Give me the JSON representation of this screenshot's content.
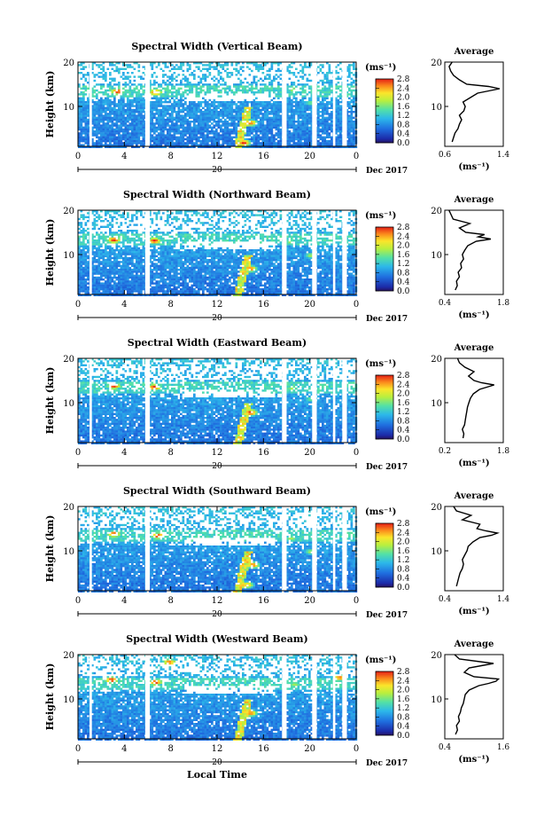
{
  "figure": {
    "xlabel_bottom": "Local Time",
    "date_label": "Dec 2017",
    "day_label": "20",
    "colorbar_unit_label": "(ms⁻¹)",
    "colorbar_ticks": [
      "0.0",
      "0.4",
      "0.8",
      "1.2",
      "1.6",
      "2.0",
      "2.4",
      "2.8"
    ],
    "profile_title": "Average",
    "profile_xlabel": "(ms⁻¹)",
    "height_label": "Height (km)"
  },
  "chart_data": [
    {
      "type": "heatmap",
      "title": "Spectral Width (Vertical Beam)",
      "xlabel": "Local Time",
      "ylabel": "Height (km)",
      "x_ticks": [
        "0",
        "4",
        "8",
        "12",
        "16",
        "20",
        "0"
      ],
      "xlim": [
        0,
        24
      ],
      "y_ticks": [
        "10",
        "20"
      ],
      "ylim": [
        1,
        20
      ],
      "gaps_hours": [
        [
          1.0,
          1.2
        ],
        [
          5.8,
          6.2
        ],
        [
          17.6,
          18.0
        ],
        [
          20.2,
          20.6
        ],
        [
          22.0,
          22.2
        ],
        [
          22.8,
          23.2
        ]
      ],
      "hotspots": [
        {
          "t": 3.3,
          "h": 13.6,
          "v": 2.8
        },
        {
          "t": 6.6,
          "h": 13.4,
          "v": 2.8
        },
        {
          "t": 14.8,
          "h": 6.5,
          "v": 2.6
        },
        {
          "t": 14.2,
          "h": 2.0,
          "v": 2.8
        },
        {
          "t": 18.5,
          "h": 14.0,
          "v": 1.8
        },
        {
          "t": 20.0,
          "h": 11.0,
          "v": 1.6
        }
      ],
      "colorbar": {
        "min": 0.0,
        "max": 2.8,
        "ticks": [
          0.0,
          0.4,
          0.8,
          1.2,
          1.6,
          2.0,
          2.4,
          2.8
        ]
      },
      "profile": {
        "title": "Average",
        "xlabel": "(ms⁻¹)",
        "x_ticks": [
          "0.6",
          "1.4"
        ],
        "xlim": [
          0.6,
          1.4
        ],
        "height": [
          2,
          3,
          4,
          5,
          6,
          7,
          8,
          9,
          10,
          11,
          12,
          13,
          13.5,
          14,
          14.5,
          15,
          16,
          17,
          18,
          19,
          20
        ],
        "values": [
          0.7,
          0.72,
          0.74,
          0.78,
          0.8,
          0.83,
          0.8,
          0.86,
          0.88,
          0.85,
          0.95,
          1.05,
          1.2,
          1.35,
          1.2,
          0.9,
          0.8,
          0.72,
          0.68,
          0.66,
          0.7
        ]
      }
    },
    {
      "type": "heatmap",
      "title": "Spectral Width (Northward Beam)",
      "xlabel": "Local Time",
      "ylabel": "Height (km)",
      "x_ticks": [
        "0",
        "4",
        "8",
        "12",
        "16",
        "20",
        "0"
      ],
      "xlim": [
        0,
        24
      ],
      "y_ticks": [
        "10",
        "20"
      ],
      "ylim": [
        1,
        20
      ],
      "gaps_hours": [
        [
          1.0,
          1.2
        ],
        [
          5.8,
          6.2
        ],
        [
          17.6,
          18.0
        ],
        [
          20.2,
          20.6
        ],
        [
          22.0,
          22.2
        ],
        [
          22.8,
          23.2
        ]
      ],
      "hotspots": [
        {
          "t": 3.0,
          "h": 13.5,
          "v": 2.8
        },
        {
          "t": 6.5,
          "h": 13.3,
          "v": 2.8
        },
        {
          "t": 14.8,
          "h": 7.0,
          "v": 2.6
        },
        {
          "t": 18.3,
          "h": 13.0,
          "v": 1.8
        },
        {
          "t": 20.0,
          "h": 10.0,
          "v": 1.8
        }
      ],
      "colorbar": {
        "min": 0.0,
        "max": 2.8,
        "ticks": [
          0.0,
          0.4,
          0.8,
          1.2,
          1.6,
          2.0,
          2.4,
          2.8
        ]
      },
      "profile": {
        "title": "Average",
        "xlabel": "(ms⁻¹)",
        "x_ticks": [
          "0.4",
          "1.8"
        ],
        "xlim": [
          0.4,
          1.8
        ],
        "height": [
          2,
          3,
          4,
          5,
          6,
          7,
          8,
          9,
          10,
          11,
          12,
          13,
          13.5,
          14,
          14.5,
          15,
          16,
          17,
          18,
          19,
          20
        ],
        "values": [
          0.65,
          0.7,
          0.68,
          0.75,
          0.72,
          0.8,
          0.78,
          0.85,
          0.82,
          0.88,
          0.95,
          1.15,
          1.5,
          1.2,
          1.35,
          0.9,
          0.75,
          1.0,
          0.6,
          0.55,
          0.5
        ]
      }
    },
    {
      "type": "heatmap",
      "title": "Spectral Width (Eastward Beam)",
      "xlabel": "Local Time",
      "ylabel": "Height (km)",
      "x_ticks": [
        "0",
        "4",
        "8",
        "12",
        "16",
        "20",
        "0"
      ],
      "xlim": [
        0,
        24
      ],
      "y_ticks": [
        "10",
        "20"
      ],
      "ylim": [
        1,
        20
      ],
      "gaps_hours": [
        [
          1.0,
          1.2
        ],
        [
          5.8,
          6.2
        ],
        [
          17.6,
          18.0
        ],
        [
          20.2,
          20.6
        ],
        [
          22.0,
          22.2
        ],
        [
          22.8,
          23.2
        ]
      ],
      "hotspots": [
        {
          "t": 3.0,
          "h": 14.0,
          "v": 2.8
        },
        {
          "t": 6.5,
          "h": 13.7,
          "v": 2.8
        },
        {
          "t": 14.8,
          "h": 8.0,
          "v": 2.8
        },
        {
          "t": 14.5,
          "h": 15.5,
          "v": 1.6
        },
        {
          "t": 18.4,
          "h": 13.5,
          "v": 1.8
        },
        {
          "t": 20.0,
          "h": 11.0,
          "v": 1.6
        }
      ],
      "colorbar": {
        "min": 0.0,
        "max": 2.8,
        "ticks": [
          0.0,
          0.4,
          0.8,
          1.2,
          1.6,
          2.0,
          2.4,
          2.8
        ]
      },
      "profile": {
        "title": "Average",
        "xlabel": "(ms⁻¹)",
        "x_ticks": [
          "0.2",
          "1.8"
        ],
        "xlim": [
          0.2,
          1.8
        ],
        "height": [
          2,
          3,
          4,
          5,
          6,
          7,
          8,
          9,
          10,
          11,
          12,
          13,
          13.5,
          14,
          14.5,
          15,
          16,
          17,
          18,
          19,
          20
        ],
        "values": [
          0.7,
          0.72,
          0.68,
          0.74,
          0.76,
          0.78,
          0.8,
          0.82,
          0.86,
          0.9,
          0.98,
          1.15,
          1.35,
          1.55,
          1.2,
          1.0,
          0.85,
          1.0,
          0.75,
          0.6,
          0.55
        ]
      }
    },
    {
      "type": "heatmap",
      "title": "Spectral Width (Southward Beam)",
      "xlabel": "Local Time",
      "ylabel": "Height (km)",
      "x_ticks": [
        "0",
        "4",
        "8",
        "12",
        "16",
        "20",
        "0"
      ],
      "xlim": [
        0,
        24
      ],
      "y_ticks": [
        "10",
        "20"
      ],
      "ylim": [
        1,
        20
      ],
      "gaps_hours": [
        [
          1.0,
          1.2
        ],
        [
          5.8,
          6.2
        ],
        [
          17.6,
          18.0
        ],
        [
          20.2,
          20.6
        ],
        [
          22.0,
          22.2
        ],
        [
          22.8,
          23.2
        ]
      ],
      "hotspots": [
        {
          "t": 3.0,
          "h": 14.0,
          "v": 2.8
        },
        {
          "t": 6.8,
          "h": 13.6,
          "v": 2.8
        },
        {
          "t": 15.0,
          "h": 7.0,
          "v": 2.6
        },
        {
          "t": 14.5,
          "h": 2.5,
          "v": 2.4
        },
        {
          "t": 18.3,
          "h": 13.0,
          "v": 1.8
        },
        {
          "t": 20.0,
          "h": 10.0,
          "v": 1.8
        }
      ],
      "colorbar": {
        "min": 0.0,
        "max": 2.8,
        "ticks": [
          0.0,
          0.4,
          0.8,
          1.2,
          1.6,
          2.0,
          2.4,
          2.8
        ]
      },
      "profile": {
        "title": "Average",
        "xlabel": "(ms⁻¹)",
        "x_ticks": [
          "0.4",
          "1.4"
        ],
        "xlim": [
          0.4,
          1.4
        ],
        "height": [
          2,
          3,
          4,
          5,
          6,
          7,
          8,
          9,
          10,
          11,
          12,
          13,
          13.5,
          14,
          14.5,
          15,
          16,
          17,
          18,
          19,
          20
        ],
        "values": [
          0.6,
          0.62,
          0.64,
          0.66,
          0.7,
          0.72,
          0.7,
          0.74,
          0.78,
          0.8,
          0.88,
          1.0,
          1.2,
          1.3,
          1.1,
          0.95,
          1.0,
          0.7,
          0.85,
          0.6,
          0.55
        ]
      }
    },
    {
      "type": "heatmap",
      "title": "Spectral Width (Westward Beam)",
      "xlabel": "Local Time",
      "ylabel": "Height (km)",
      "x_ticks": [
        "0",
        "4",
        "8",
        "12",
        "16",
        "20",
        "0"
      ],
      "xlim": [
        0,
        24
      ],
      "y_ticks": [
        "10",
        "20"
      ],
      "ylim": [
        1,
        20
      ],
      "gaps_hours": [
        [
          1.0,
          1.2
        ],
        [
          5.8,
          6.2
        ],
        [
          17.6,
          18.0
        ],
        [
          20.2,
          20.6
        ],
        [
          22.0,
          22.2
        ],
        [
          22.8,
          23.2
        ]
      ],
      "hotspots": [
        {
          "t": 2.8,
          "h": 14.5,
          "v": 2.8
        },
        {
          "t": 6.6,
          "h": 14.0,
          "v": 2.8
        },
        {
          "t": 7.8,
          "h": 18.5,
          "v": 2.6
        },
        {
          "t": 14.8,
          "h": 7.0,
          "v": 2.6
        },
        {
          "t": 18.6,
          "h": 13.5,
          "v": 1.8
        },
        {
          "t": 22.5,
          "h": 15.0,
          "v": 2.6
        }
      ],
      "colorbar": {
        "min": 0.0,
        "max": 2.8,
        "ticks": [
          0.0,
          0.4,
          0.8,
          1.2,
          1.6,
          2.0,
          2.4,
          2.8
        ]
      },
      "profile": {
        "title": "Average",
        "xlabel": "(ms⁻¹)",
        "x_ticks": [
          "0.4",
          "1.6"
        ],
        "xlim": [
          0.4,
          1.6
        ],
        "height": [
          2,
          3,
          4,
          5,
          6,
          7,
          8,
          9,
          10,
          11,
          12,
          13,
          13.5,
          14,
          14.5,
          15,
          16,
          17,
          18,
          19,
          20
        ],
        "values": [
          0.62,
          0.66,
          0.64,
          0.7,
          0.68,
          0.72,
          0.74,
          0.78,
          0.8,
          0.82,
          0.9,
          1.1,
          1.3,
          1.45,
          1.5,
          1.0,
          0.8,
          0.9,
          1.4,
          0.7,
          0.6
        ]
      }
    }
  ]
}
